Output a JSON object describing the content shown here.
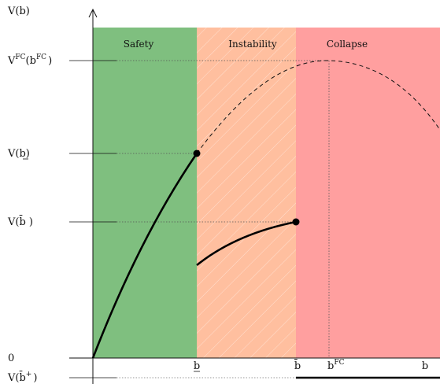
{
  "regions": [
    {
      "key": "safety",
      "title": "Safety",
      "color": "#7fbf7f"
    },
    {
      "key": "instability",
      "title": "Instability",
      "color": "#ffbf9f"
    },
    {
      "key": "collapse",
      "title": "Collapse",
      "color": "#ff9f9f"
    }
  ],
  "y_axis": {
    "label_main": "V(b)",
    "ticks": {
      "vfc_main": "V",
      "vfc_sup": "FC",
      "vfc_mid": "(b",
      "vfc_sup2": "FC",
      "vfc_end": ")",
      "v_under": "V(b)",
      "v_bar": "V(b̄ )",
      "zero": "0",
      "v_barplus_main": "V(b̄",
      "v_barplus_sup": "+",
      "v_barplus_end": ")"
    }
  },
  "x_axis": {
    "b_under": "b",
    "b_bar": "b̄",
    "bfc_main": "b",
    "bfc_sup": "FC",
    "b": "b"
  }
}
